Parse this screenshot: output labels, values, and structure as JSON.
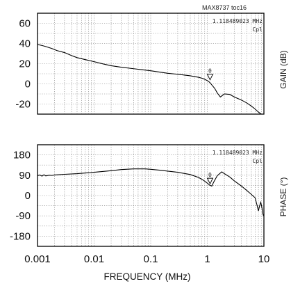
{
  "figure_id": "MAX8737 toc16",
  "chart_data": [
    {
      "type": "line",
      "name_key": "gain",
      "ylabel": "GAIN (dB)",
      "x_scale": "log",
      "xlim": [
        0.001,
        10
      ],
      "ylim": [
        -30,
        70
      ],
      "y_ticks": [
        60,
        40,
        20,
        0,
        -20
      ],
      "x_ticks": [
        0.001,
        0.01,
        0.1,
        1,
        10
      ],
      "grid": true,
      "marker": {
        "frequency_text": "1.118489023 MHz",
        "mode_text": "Cpl",
        "x": 1.118489023,
        "y": 4,
        "label": "0"
      },
      "x": [
        0.001,
        0.0012,
        0.0014,
        0.0018,
        0.0022,
        0.003,
        0.004,
        0.005,
        0.007,
        0.01,
        0.015,
        0.02,
        0.03,
        0.05,
        0.07,
        0.1,
        0.15,
        0.2,
        0.3,
        0.5,
        0.7,
        0.85,
        1.0,
        1.1,
        1.2,
        1.35,
        1.5,
        1.7,
        2.0,
        2.5,
        3.0,
        4.0,
        5.0,
        6.0,
        7.0,
        8.0,
        9.0
      ],
      "y": [
        39,
        38,
        37,
        35,
        33,
        31,
        28,
        26,
        24,
        22,
        19.5,
        18,
        16.5,
        15,
        14,
        13,
        11.5,
        10.5,
        9.5,
        8,
        6.5,
        5.2,
        3.2,
        1.5,
        -1,
        -4.5,
        -9,
        -13,
        -10,
        -10.5,
        -13,
        -16,
        -19,
        -22,
        -25,
        -28,
        -30
      ]
    },
    {
      "type": "line",
      "name_key": "phase",
      "ylabel": "PHASE (°)",
      "x_scale": "log",
      "xlim": [
        0.001,
        10
      ],
      "ylim": [
        -225,
        225
      ],
      "y_ticks": [
        180,
        90,
        0,
        -90,
        -180
      ],
      "x_ticks": [
        0.001,
        0.01,
        0.1,
        1,
        10
      ],
      "xlabel": "FREQUENCY (MHz)",
      "grid": true,
      "marker": {
        "frequency_text": "1.118489023 MHz",
        "mode_text": "Cpl",
        "x": 1.118489023,
        "y": 52,
        "label": "0"
      },
      "x": [
        0.001,
        0.0011,
        0.0012,
        0.0013,
        0.0014,
        0.0016,
        0.0018,
        0.002,
        0.003,
        0.005,
        0.01,
        0.02,
        0.03,
        0.05,
        0.08,
        0.1,
        0.15,
        0.2,
        0.3,
        0.5,
        0.7,
        0.85,
        1.0,
        1.1,
        1.2,
        1.3,
        1.5,
        1.8,
        2.0,
        2.5,
        3.0,
        4.0,
        5.0,
        6.0,
        7.0,
        7.6,
        8.0,
        8.4,
        8.8,
        9.2,
        9.6,
        10.0
      ],
      "y": [
        88,
        91,
        86,
        92,
        87,
        90,
        89,
        91,
        94,
        97,
        103,
        110,
        115,
        118,
        118,
        116,
        112,
        108,
        103,
        93,
        80,
        68,
        55,
        46,
        42,
        60,
        88,
        105,
        97,
        82,
        65,
        42,
        22,
        5,
        -10,
        -45,
        -68,
        -45,
        -30,
        -52,
        -82,
        -92
      ]
    }
  ]
}
